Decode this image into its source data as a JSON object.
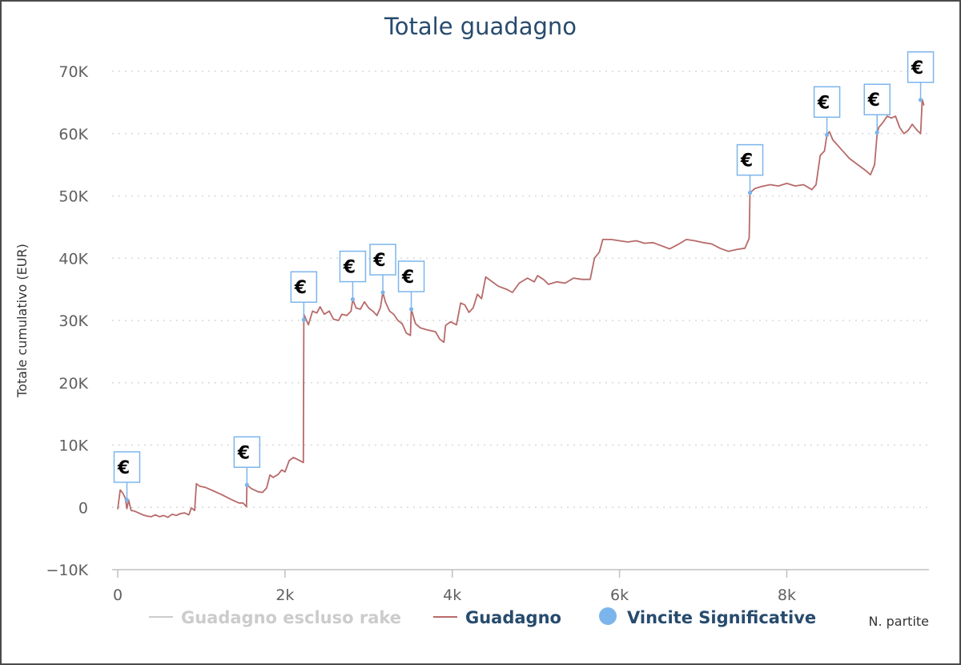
{
  "chart_data": {
    "type": "line",
    "title": "Totale guadagno",
    "ylabel": "Totale cumulativo (EUR)",
    "xlabel": "N. partite",
    "xlim": [
      0,
      9700
    ],
    "ylim": [
      -10000,
      70000
    ],
    "x_ticks": [
      0,
      2000,
      4000,
      6000,
      8000
    ],
    "x_tick_labels": [
      "0",
      "2k",
      "4k",
      "6k",
      "8k"
    ],
    "y_ticks": [
      -10000,
      0,
      10000,
      20000,
      30000,
      40000,
      50000,
      60000,
      70000
    ],
    "y_tick_labels": [
      "−10K",
      "0",
      "10K",
      "20K",
      "30K",
      "40K",
      "50K",
      "60K",
      "70K"
    ],
    "grid": "horizontal dotted",
    "legend_position": "bottom",
    "series": [
      {
        "name": "Guadagno escluso rake",
        "color": "#cccccc",
        "hidden": true,
        "points": []
      },
      {
        "name": "Guadagno",
        "color": "#b86a6a",
        "points": [
          [
            0,
            -300
          ],
          [
            30,
            2800
          ],
          [
            60,
            2300
          ],
          [
            90,
            1500
          ],
          [
            110,
            -200
          ],
          [
            130,
            1200
          ],
          [
            160,
            -500
          ],
          [
            200,
            -600
          ],
          [
            250,
            -900
          ],
          [
            300,
            -1200
          ],
          [
            350,
            -1400
          ],
          [
            400,
            -1500
          ],
          [
            450,
            -1200
          ],
          [
            500,
            -1500
          ],
          [
            550,
            -1300
          ],
          [
            600,
            -1600
          ],
          [
            650,
            -1100
          ],
          [
            700,
            -1300
          ],
          [
            750,
            -1000
          ],
          [
            800,
            -900
          ],
          [
            850,
            -1200
          ],
          [
            880,
            -100
          ],
          [
            920,
            -500
          ],
          [
            940,
            3800
          ],
          [
            980,
            3400
          ],
          [
            1050,
            3200
          ],
          [
            1150,
            2600
          ],
          [
            1250,
            2000
          ],
          [
            1350,
            1300
          ],
          [
            1450,
            700
          ],
          [
            1500,
            700
          ],
          [
            1540,
            100
          ],
          [
            1545,
            3600
          ],
          [
            1600,
            3000
          ],
          [
            1680,
            2500
          ],
          [
            1730,
            2400
          ],
          [
            1780,
            3100
          ],
          [
            1820,
            5200
          ],
          [
            1860,
            4800
          ],
          [
            1920,
            5300
          ],
          [
            1960,
            6000
          ],
          [
            2000,
            5700
          ],
          [
            2050,
            7500
          ],
          [
            2100,
            8000
          ],
          [
            2150,
            7700
          ],
          [
            2220,
            7200
          ],
          [
            2225,
            31000
          ],
          [
            2280,
            29300
          ],
          [
            2330,
            31500
          ],
          [
            2380,
            31200
          ],
          [
            2420,
            32200
          ],
          [
            2470,
            31000
          ],
          [
            2530,
            31500
          ],
          [
            2580,
            30200
          ],
          [
            2640,
            30000
          ],
          [
            2680,
            31000
          ],
          [
            2740,
            30800
          ],
          [
            2790,
            31500
          ],
          [
            2810,
            33400
          ],
          [
            2850,
            32000
          ],
          [
            2900,
            31800
          ],
          [
            2950,
            33000
          ],
          [
            3000,
            32000
          ],
          [
            3050,
            31500
          ],
          [
            3100,
            30800
          ],
          [
            3140,
            32000
          ],
          [
            3170,
            34500
          ],
          [
            3200,
            33000
          ],
          [
            3250,
            31500
          ],
          [
            3300,
            31000
          ],
          [
            3350,
            30000
          ],
          [
            3400,
            29500
          ],
          [
            3450,
            28000
          ],
          [
            3500,
            27600
          ],
          [
            3510,
            31800
          ],
          [
            3560,
            29500
          ],
          [
            3620,
            28800
          ],
          [
            3700,
            28500
          ],
          [
            3800,
            28200
          ],
          [
            3850,
            27000
          ],
          [
            3900,
            26500
          ],
          [
            3920,
            29200
          ],
          [
            3980,
            29800
          ],
          [
            4050,
            29300
          ],
          [
            4100,
            32800
          ],
          [
            4150,
            32500
          ],
          [
            4200,
            31300
          ],
          [
            4250,
            32000
          ],
          [
            4300,
            34200
          ],
          [
            4350,
            33500
          ],
          [
            4400,
            37000
          ],
          [
            4450,
            36500
          ],
          [
            4550,
            35500
          ],
          [
            4650,
            35000
          ],
          [
            4720,
            34500
          ],
          [
            4800,
            36000
          ],
          [
            4900,
            36800
          ],
          [
            4980,
            36200
          ],
          [
            5020,
            37200
          ],
          [
            5100,
            36500
          ],
          [
            5150,
            35800
          ],
          [
            5250,
            36200
          ],
          [
            5350,
            36000
          ],
          [
            5450,
            36800
          ],
          [
            5550,
            36600
          ],
          [
            5650,
            36600
          ],
          [
            5700,
            40000
          ],
          [
            5760,
            41000
          ],
          [
            5800,
            43000
          ],
          [
            5900,
            43000
          ],
          [
            6000,
            42800
          ],
          [
            6100,
            42600
          ],
          [
            6200,
            42800
          ],
          [
            6300,
            42400
          ],
          [
            6400,
            42500
          ],
          [
            6500,
            42000
          ],
          [
            6600,
            41500
          ],
          [
            6700,
            42200
          ],
          [
            6800,
            43000
          ],
          [
            6900,
            42800
          ],
          [
            7000,
            42500
          ],
          [
            7100,
            42300
          ],
          [
            7200,
            41600
          ],
          [
            7300,
            41100
          ],
          [
            7400,
            41400
          ],
          [
            7500,
            41600
          ],
          [
            7550,
            43200
          ],
          [
            7560,
            50500
          ],
          [
            7620,
            51200
          ],
          [
            7700,
            51500
          ],
          [
            7800,
            51800
          ],
          [
            7900,
            51600
          ],
          [
            8000,
            52000
          ],
          [
            8100,
            51600
          ],
          [
            8200,
            51800
          ],
          [
            8300,
            51000
          ],
          [
            8350,
            51800
          ],
          [
            8400,
            56500
          ],
          [
            8450,
            57200
          ],
          [
            8480,
            59800
          ],
          [
            8510,
            60300
          ],
          [
            8550,
            59000
          ],
          [
            8650,
            57500
          ],
          [
            8750,
            56000
          ],
          [
            8850,
            55000
          ],
          [
            8950,
            54000
          ],
          [
            9000,
            53400
          ],
          [
            9050,
            55000
          ],
          [
            9080,
            60000
          ],
          [
            9100,
            61000
          ],
          [
            9150,
            61800
          ],
          [
            9200,
            62800
          ],
          [
            9250,
            62500
          ],
          [
            9300,
            62800
          ],
          [
            9350,
            61000
          ],
          [
            9400,
            60000
          ],
          [
            9450,
            60500
          ],
          [
            9500,
            61500
          ],
          [
            9560,
            60500
          ],
          [
            9600,
            60000
          ],
          [
            9620,
            65500
          ],
          [
            9640,
            64500
          ]
        ]
      },
      {
        "name": "Vincite Significative",
        "color": "#7cb5ec",
        "type": "flags",
        "flag_label": "€",
        "points": [
          [
            110,
            1200
          ],
          [
            1545,
            3600
          ],
          [
            2225,
            30100
          ],
          [
            2810,
            33400
          ],
          [
            3170,
            34500
          ],
          [
            3510,
            31800
          ],
          [
            7560,
            50500
          ],
          [
            8480,
            59800
          ],
          [
            9080,
            60200
          ],
          [
            9600,
            65400
          ]
        ]
      }
    ]
  }
}
